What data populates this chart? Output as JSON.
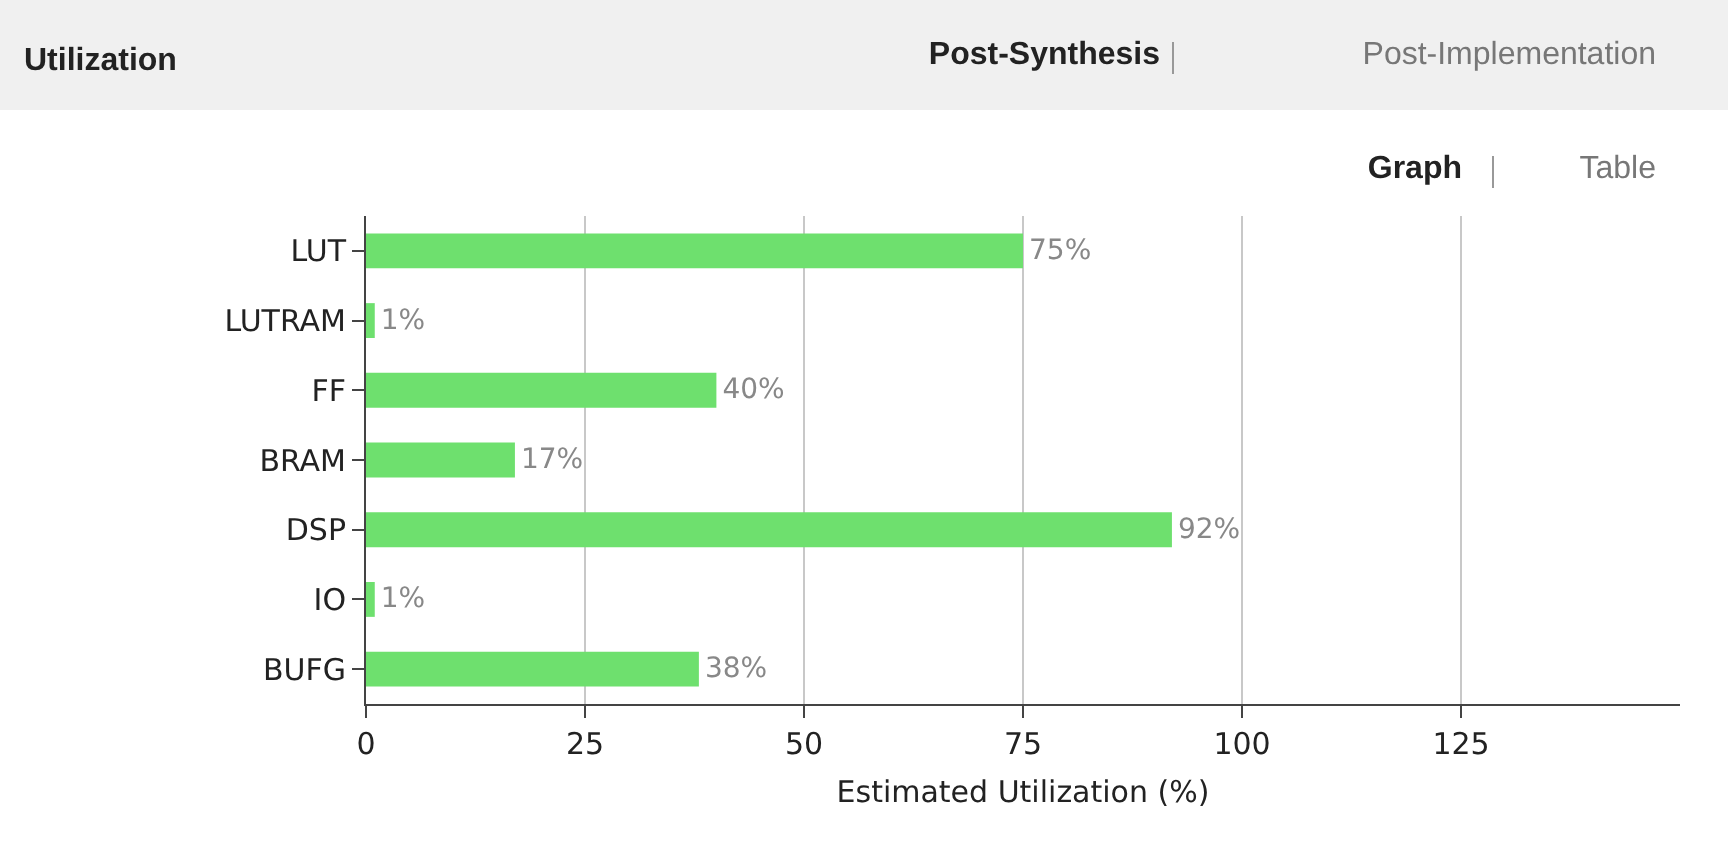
{
  "chart_data": {
    "type": "bar",
    "orientation": "horizontal",
    "title": "Utilization",
    "xlabel": "Estimated Utilization (%)",
    "categories": [
      "LUT",
      "LUTRAM",
      "FF",
      "BRAM",
      "DSP",
      "IO",
      "BUFG"
    ],
    "values": [
      75,
      1,
      40,
      17,
      92,
      1,
      38
    ],
    "value_labels": [
      "75%",
      "1%",
      "40%",
      "17%",
      "92%",
      "1%",
      "38%"
    ],
    "color": "#6ee06e",
    "xlim": [
      0,
      150
    ],
    "xticks": [
      0,
      25,
      50,
      75,
      100,
      125
    ],
    "grid": "x",
    "legend": false,
    "annotations": [
      "Post-Synthesis",
      "Post-Implementation",
      "Graph",
      "Table"
    ]
  }
}
